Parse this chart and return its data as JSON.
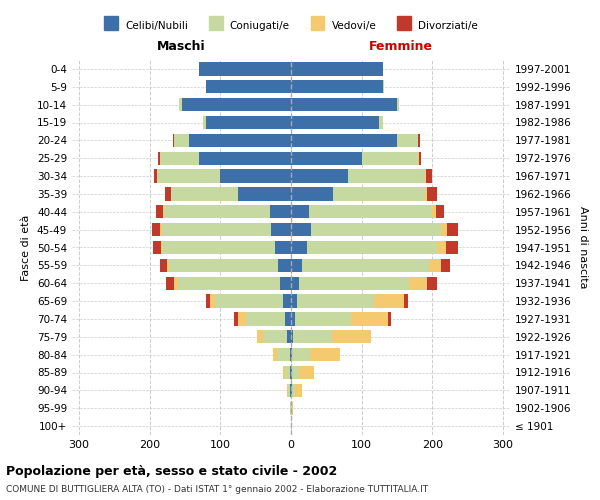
{
  "age_groups": [
    "100+",
    "95-99",
    "90-94",
    "85-89",
    "80-84",
    "75-79",
    "70-74",
    "65-69",
    "60-64",
    "55-59",
    "50-54",
    "45-49",
    "40-44",
    "35-39",
    "30-34",
    "25-29",
    "20-24",
    "15-19",
    "10-14",
    "5-9",
    "0-4"
  ],
  "birth_years": [
    "≤ 1901",
    "1902-1906",
    "1907-1911",
    "1912-1916",
    "1917-1921",
    "1922-1926",
    "1927-1931",
    "1932-1936",
    "1937-1941",
    "1942-1946",
    "1947-1951",
    "1952-1956",
    "1957-1961",
    "1962-1966",
    "1967-1971",
    "1972-1976",
    "1977-1981",
    "1982-1986",
    "1987-1991",
    "1992-1996",
    "1997-2001"
  ],
  "maschi": {
    "celibi": [
      0,
      0,
      1,
      1,
      2,
      5,
      8,
      12,
      15,
      18,
      22,
      28,
      30,
      75,
      100,
      130,
      145,
      120,
      155,
      120,
      130
    ],
    "coniugati": [
      0,
      1,
      3,
      8,
      18,
      35,
      55,
      95,
      145,
      155,
      160,
      155,
      150,
      95,
      90,
      55,
      20,
      5,
      3,
      1,
      0
    ],
    "vedovi": [
      0,
      0,
      1,
      2,
      5,
      8,
      12,
      8,
      5,
      3,
      2,
      2,
      1,
      0,
      0,
      0,
      0,
      0,
      0,
      0,
      0
    ],
    "divorziati": [
      0,
      0,
      0,
      0,
      0,
      0,
      5,
      5,
      12,
      10,
      12,
      12,
      10,
      8,
      4,
      3,
      2,
      0,
      0,
      0,
      0
    ]
  },
  "femmine": {
    "nubili": [
      0,
      0,
      1,
      1,
      2,
      3,
      5,
      8,
      12,
      15,
      22,
      28,
      25,
      60,
      80,
      100,
      150,
      125,
      150,
      130,
      130
    ],
    "coniugate": [
      0,
      1,
      5,
      10,
      25,
      55,
      80,
      110,
      155,
      180,
      185,
      185,
      175,
      130,
      110,
      80,
      30,
      5,
      3,
      1,
      0
    ],
    "vedove": [
      0,
      2,
      10,
      22,
      42,
      55,
      52,
      42,
      25,
      18,
      12,
      8,
      5,
      2,
      1,
      1,
      0,
      0,
      0,
      0,
      0
    ],
    "divorziate": [
      0,
      0,
      0,
      0,
      0,
      0,
      5,
      5,
      15,
      12,
      18,
      15,
      12,
      15,
      8,
      3,
      2,
      0,
      0,
      0,
      0
    ]
  },
  "colors": {
    "celibi": "#3d6fa8",
    "coniugati": "#c5d9a0",
    "vedovi": "#f5c96e",
    "divorziati": "#c0392b"
  },
  "title": "Popolazione per età, sesso e stato civile - 2002",
  "subtitle": "COMUNE DI BUTTIGLIERA ALTA (TO) - Dati ISTAT 1° gennaio 2002 - Elaborazione TUTTITALIA.IT",
  "xlabel_maschi": "Maschi",
  "xlabel_femmine": "Femmine",
  "ylabel_left": "Fasce di età",
  "ylabel_right": "Anni di nascita",
  "xlim": 310,
  "legend_labels": [
    "Celibi/Nubili",
    "Coniugati/e",
    "Vedovi/e",
    "Divorziati/e"
  ],
  "bg_color": "#ffffff",
  "grid_color": "#cccccc",
  "bar_height": 0.75
}
